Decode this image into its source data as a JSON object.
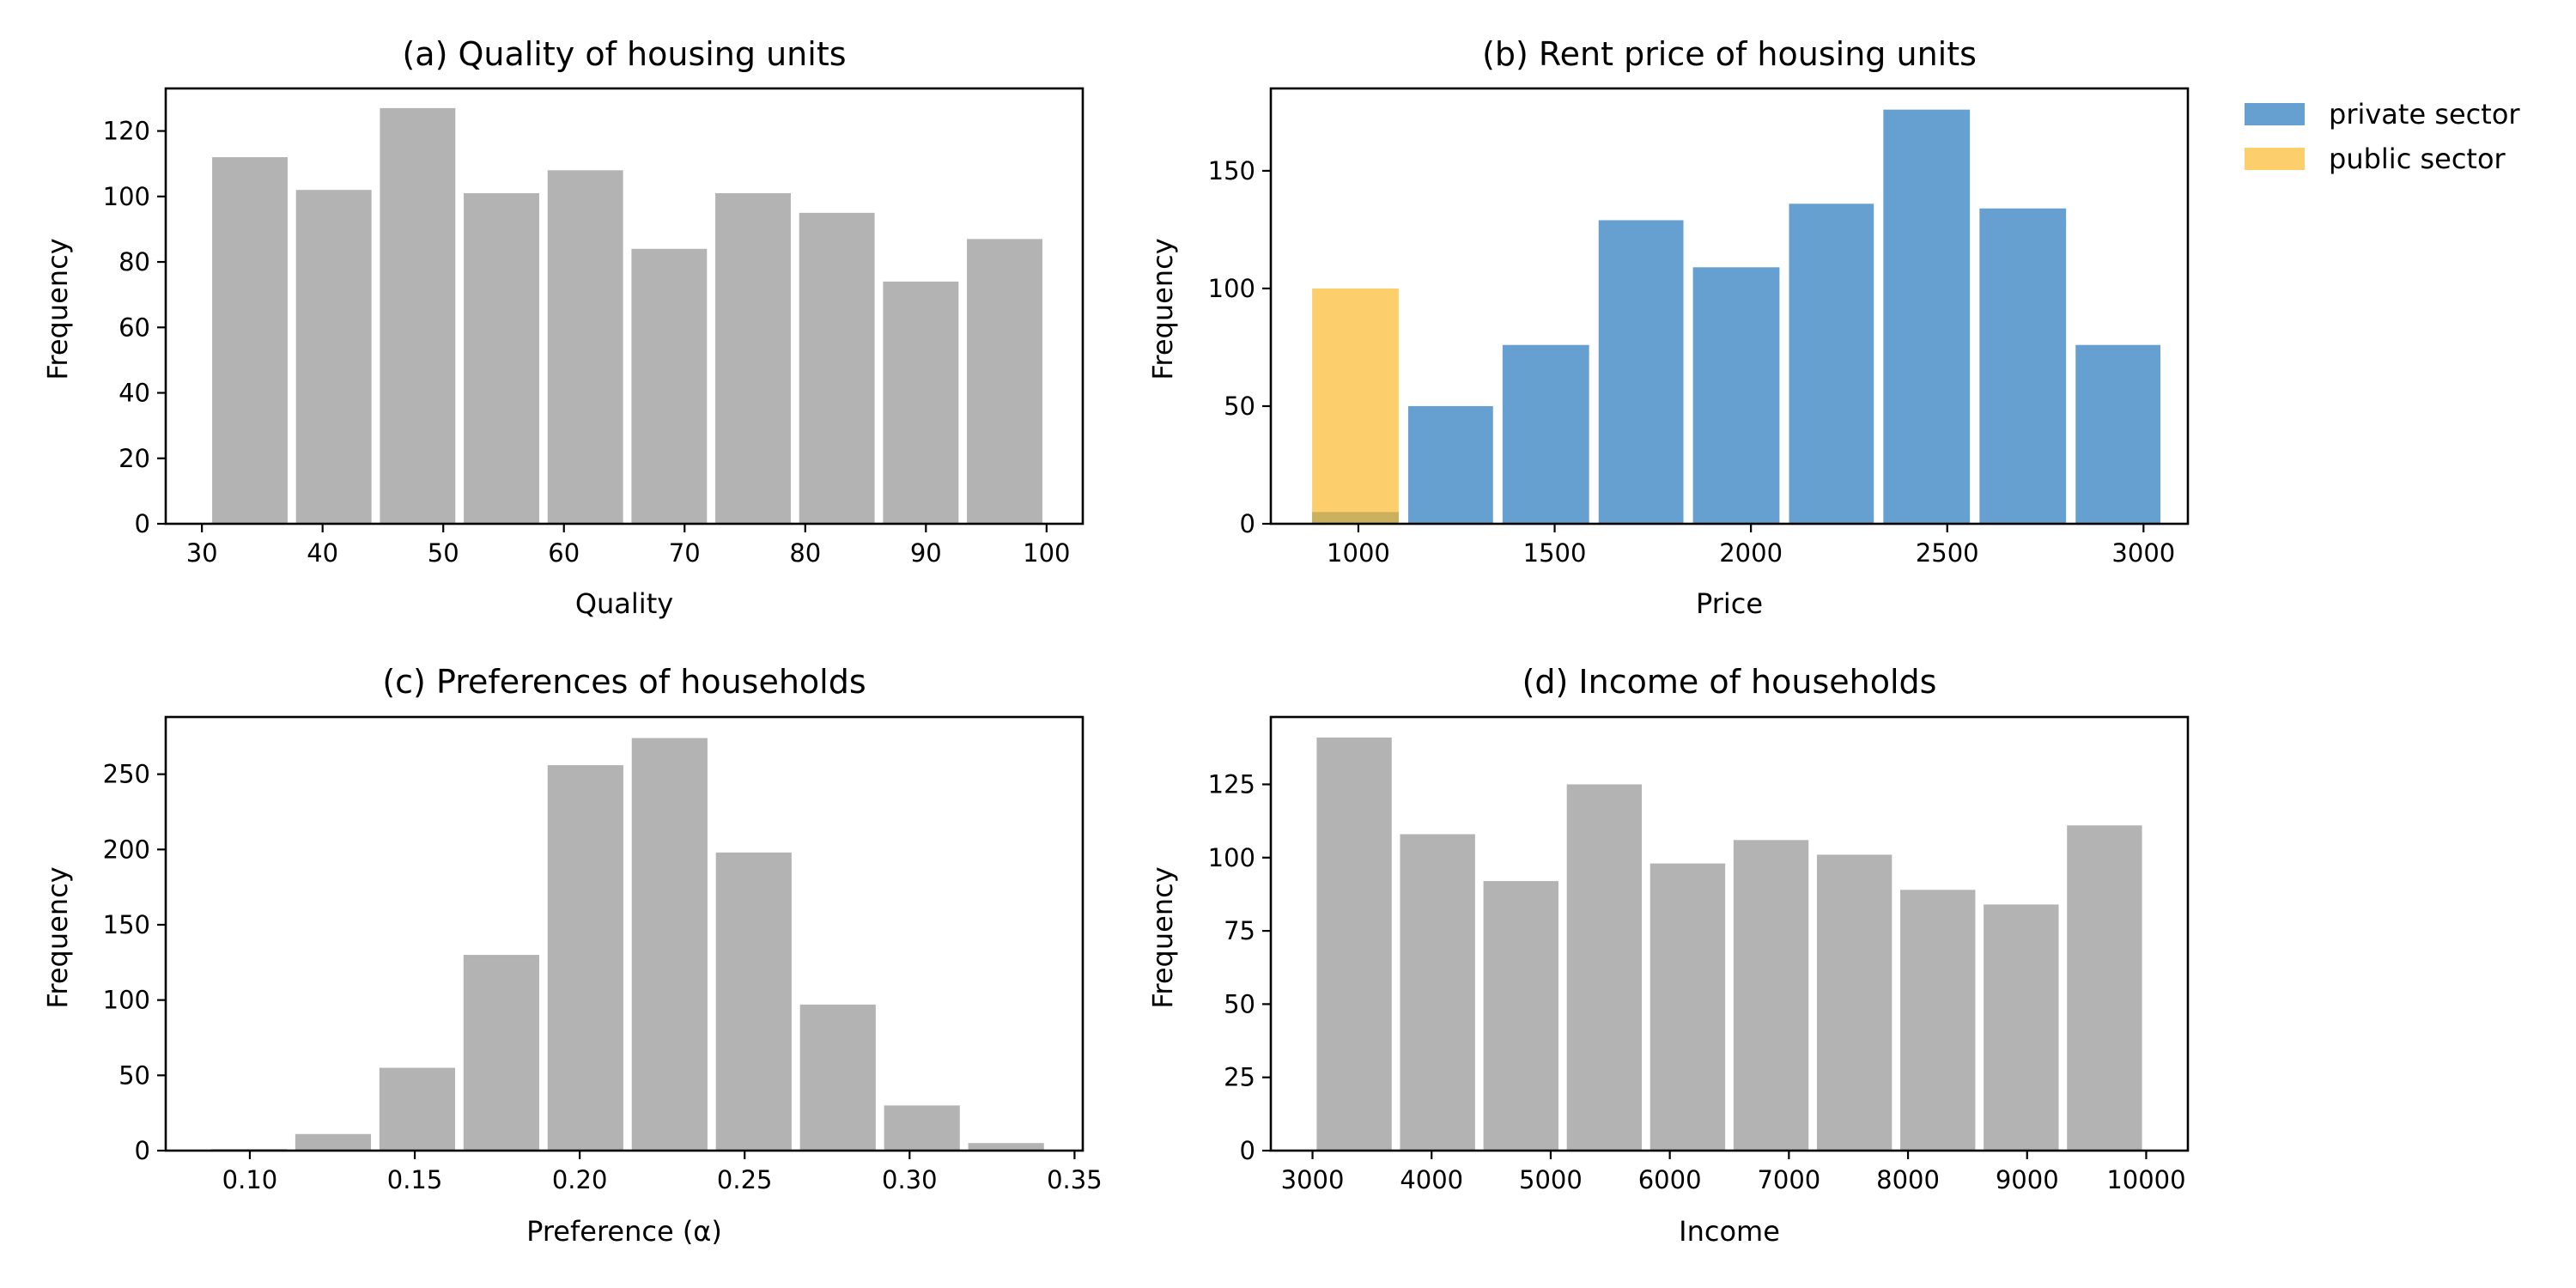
{
  "chart_data": [
    {
      "type": "bar",
      "title": "(a) Quality of housing units",
      "xlabel": "Quality",
      "ylabel": "Frequency",
      "xlim": [
        27,
        103
      ],
      "ylim": [
        0,
        133
      ],
      "xticks": [
        30,
        40,
        50,
        60,
        70,
        80,
        90,
        100
      ],
      "xtick_labels": [
        "30",
        "40",
        "50",
        "60",
        "70",
        "80",
        "90",
        "100"
      ],
      "yticks": [
        0,
        20,
        40,
        60,
        80,
        100,
        120
      ],
      "ytick_labels": [
        "0",
        "20",
        "40",
        "60",
        "80",
        "100",
        "120"
      ],
      "bin_edges": [
        30.5,
        37.45,
        44.4,
        51.35,
        58.3,
        65.25,
        72.2,
        79.15,
        86.1,
        93.05,
        100.0
      ],
      "series": [
        {
          "values": [
            112,
            102,
            127,
            101,
            108,
            84,
            101,
            95,
            74,
            87
          ],
          "color": "#b3b3b3"
        }
      ]
    },
    {
      "type": "bar",
      "title": "(b) Rent price of housing units",
      "xlabel": "Price",
      "ylabel": "Frequency",
      "xlim": [
        777,
        3113
      ],
      "ylim": [
        0,
        185
      ],
      "xticks": [
        1000,
        1500,
        2000,
        2500,
        3000
      ],
      "xtick_labels": [
        "1000",
        "1500",
        "2000",
        "2500",
        "3000"
      ],
      "yticks": [
        0,
        50,
        100,
        150
      ],
      "ytick_labels": [
        "0",
        "50",
        "100",
        "150"
      ],
      "bin_edges": [
        870,
        1115,
        1355,
        1600,
        1840,
        2085,
        2325,
        2570,
        2815,
        3055
      ],
      "legend_position": "outside-right-top",
      "series": [
        {
          "name": "private sector",
          "color": "#2a7bbf",
          "opacity": 0.72,
          "values": [
            5,
            50,
            76,
            129,
            109,
            136,
            176,
            134,
            76
          ]
        },
        {
          "name": "public sector",
          "color": "#fcb827",
          "opacity": 0.68,
          "values": [
            100,
            0,
            0,
            0,
            0,
            0,
            0,
            0,
            0
          ]
        }
      ]
    },
    {
      "type": "bar",
      "title": "(c) Preferences of households",
      "xlabel": "Preference (α)",
      "ylabel": "Frequency",
      "xlim": [
        0.0745,
        0.3525
      ],
      "ylim": [
        0,
        288
      ],
      "xticks": [
        0.1,
        0.15,
        0.2,
        0.25,
        0.3,
        0.35
      ],
      "xtick_labels": [
        "0.10",
        "0.15",
        "0.20",
        "0.25",
        "0.30",
        "0.35"
      ],
      "yticks": [
        0,
        50,
        100,
        150,
        200,
        250
      ],
      "ytick_labels": [
        "0",
        "50",
        "100",
        "150",
        "200",
        "250"
      ],
      "bin_edges": [
        0.087,
        0.1125,
        0.138,
        0.1635,
        0.189,
        0.2145,
        0.24,
        0.2655,
        0.291,
        0.3165,
        0.342
      ],
      "series": [
        {
          "values": [
            1,
            11,
            55,
            130,
            256,
            274,
            198,
            97,
            30,
            5
          ],
          "color": "#b3b3b3"
        }
      ]
    },
    {
      "type": "bar",
      "title": "(d) Income of households",
      "xlabel": "Income",
      "ylabel": "Frequency",
      "xlim": [
        2650,
        10350
      ],
      "ylim": [
        0,
        148
      ],
      "xticks": [
        3000,
        4000,
        5000,
        6000,
        7000,
        8000,
        9000,
        10000
      ],
      "xtick_labels": [
        "3000",
        "4000",
        "5000",
        "6000",
        "7000",
        "8000",
        "9000",
        "10000"
      ],
      "yticks": [
        0,
        25,
        50,
        75,
        100,
        125
      ],
      "ytick_labels": [
        "0",
        "25",
        "50",
        "75",
        "100",
        "125"
      ],
      "bin_edges": [
        3000,
        3700,
        4400,
        5100,
        5800,
        6500,
        7200,
        7900,
        8600,
        9300,
        10000
      ],
      "series": [
        {
          "values": [
            141,
            108,
            92,
            125,
            98,
            106,
            101,
            89,
            84,
            111
          ],
          "color": "#b3b3b3"
        }
      ]
    }
  ]
}
